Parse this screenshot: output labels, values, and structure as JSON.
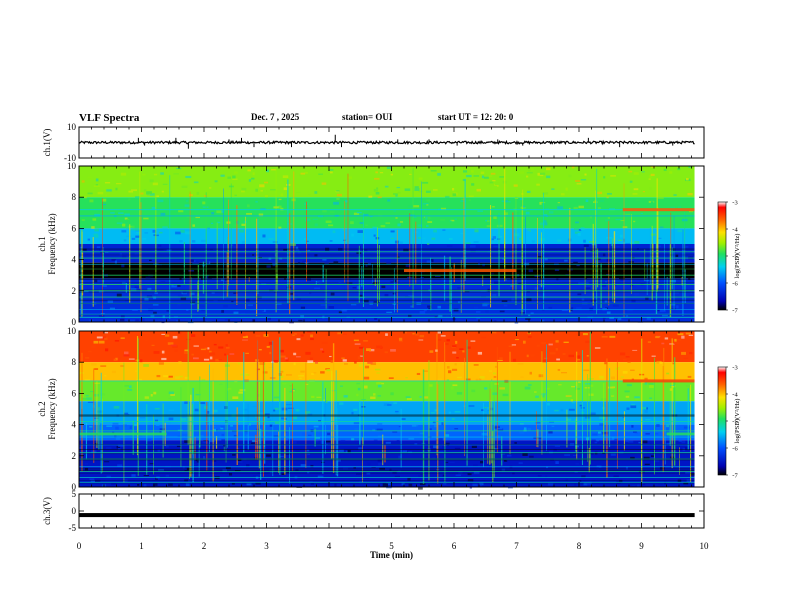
{
  "header": {
    "title": "VLF Spectra",
    "date": "Dec. 7 , 2025",
    "station": "station= OUI",
    "start": "start  UT =   12: 20: 0"
  },
  "chart_data": {
    "type": "heatmap",
    "xlabel": "Time  (min)",
    "xlim": [
      0,
      10
    ],
    "x_ticks": [
      "0",
      "1",
      "2",
      "3",
      "4",
      "5",
      "6",
      "7",
      "8",
      "9",
      "10"
    ],
    "data_end_min": 9.85,
    "panels": [
      {
        "id": "ch1-waveform",
        "kind": "waveform",
        "ylabel": "ch.1(V)",
        "ylim": [
          -10,
          10
        ],
        "y_ticks": [
          "10",
          "-10"
        ],
        "baseline": 0,
        "spikes": [
          [
            0.95,
            3
          ],
          [
            1.05,
            -2
          ],
          [
            1.55,
            3
          ],
          [
            1.75,
            -4
          ],
          [
            2.4,
            2
          ],
          [
            2.6,
            3
          ],
          [
            2.8,
            -3
          ],
          [
            3.4,
            -3
          ],
          [
            4.1,
            5
          ],
          [
            4.2,
            -3
          ],
          [
            5.1,
            2
          ],
          [
            5.6,
            2
          ],
          [
            6.05,
            -2
          ],
          [
            6.7,
            2
          ],
          [
            7.1,
            -2
          ],
          [
            8.15,
            3
          ],
          [
            8.65,
            -3
          ],
          [
            9.5,
            -2
          ]
        ]
      },
      {
        "id": "ch1-spectrogram",
        "kind": "spectrogram",
        "channel": "ch.1",
        "ylabel": "Frequency (kHz)",
        "ylim": [
          0,
          10
        ],
        "y_ticks": [
          "0",
          "2",
          "4",
          "6",
          "8",
          "10"
        ],
        "colorbar": {
          "label": "log(PSD)(V²/Hz)",
          "range": [
            -7,
            -3
          ],
          "ticks": [
            "-3",
            "-4",
            "-5",
            "-6",
            "-7"
          ]
        },
        "bands": [
          {
            "from": 8.0,
            "to": 10.0,
            "log_psd": -4.6
          },
          {
            "from": 6.0,
            "to": 8.0,
            "log_psd": -4.9
          },
          {
            "from": 5.0,
            "to": 6.0,
            "log_psd": -5.5
          },
          {
            "from": 3.8,
            "to": 5.0,
            "log_psd": -6.4
          },
          {
            "from": 2.8,
            "to": 3.8,
            "log_psd": -7.0
          },
          {
            "from": 0.0,
            "to": 2.8,
            "log_psd": -6.3
          }
        ],
        "tones_khz": [
          0.3,
          0.5,
          0.8,
          1.2,
          1.6,
          2.0,
          2.4,
          3.0,
          3.4,
          3.7,
          4.1,
          4.5,
          6.8,
          7.2
        ],
        "features": [
          {
            "t_start": 5.2,
            "t_end": 7.0,
            "freq_khz": 3.3,
            "log_psd": -3.6
          },
          {
            "t_start": 8.7,
            "t_end": 9.85,
            "freq_khz": 7.2,
            "log_psd": -3.6
          }
        ]
      },
      {
        "id": "ch2-spectrogram",
        "kind": "spectrogram",
        "channel": "ch.2",
        "ylabel": "Frequency (kHz)",
        "ylim": [
          0,
          10
        ],
        "y_ticks": [
          "0",
          "2",
          "4",
          "6",
          "8",
          "10"
        ],
        "colorbar": {
          "label": "log(PSD)(V²/Hz)",
          "range": [
            -7,
            -3
          ],
          "ticks": [
            "-3",
            "-4",
            "-5",
            "-6",
            "-7"
          ]
        },
        "bands": [
          {
            "from": 8.0,
            "to": 10.0,
            "log_psd": -3.5
          },
          {
            "from": 6.8,
            "to": 8.0,
            "log_psd": -4.0
          },
          {
            "from": 5.5,
            "to": 6.8,
            "log_psd": -4.7
          },
          {
            "from": 4.0,
            "to": 5.5,
            "log_psd": -5.6
          },
          {
            "from": 3.0,
            "to": 4.0,
            "log_psd": -5.9
          },
          {
            "from": 0.0,
            "to": 3.0,
            "log_psd": -6.5
          }
        ],
        "tones_khz": [
          0.3,
          0.6,
          1.0,
          1.3,
          1.8,
          2.2,
          2.7,
          3.2,
          3.6,
          4.2,
          6.8
        ],
        "features": [
          {
            "t_start": 0.0,
            "t_end": 1.4,
            "freq_khz": 3.4,
            "log_psd": -4.9
          },
          {
            "t_start": 9.4,
            "t_end": 9.85,
            "freq_khz": 3.4,
            "log_psd": -4.9
          },
          {
            "t_start": 8.7,
            "t_end": 9.85,
            "freq_khz": 6.8,
            "log_psd": -3.5
          }
        ]
      },
      {
        "id": "ch3-waveform",
        "kind": "waveform",
        "ylabel": "ch.3(V)",
        "ylim": [
          -5,
          5
        ],
        "y_ticks": [
          "5",
          "0",
          "-5"
        ],
        "baseline": -1.2,
        "spikes": []
      }
    ]
  }
}
